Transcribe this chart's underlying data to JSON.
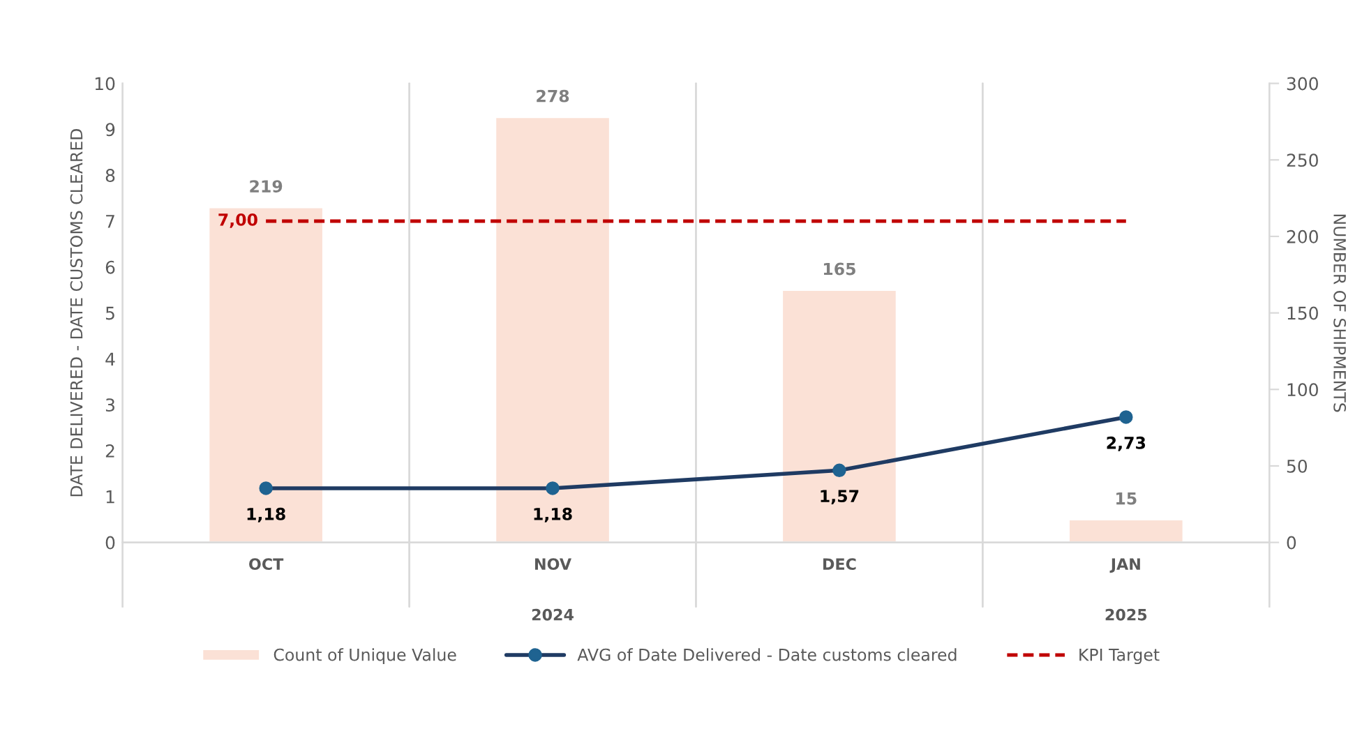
{
  "chart_data": {
    "type": "bar",
    "categories": [
      "OCT",
      "NOV",
      "DEC",
      "JAN"
    ],
    "ylabel": "DATE DELIVERED - DATE CUSTOMS CLEARED",
    "y2label": "NUMBER OF SHIPMENTS",
    "ylim": [
      0,
      10
    ],
    "yticks": [
      0,
      1,
      2,
      3,
      4,
      5,
      6,
      7,
      8,
      9,
      10
    ],
    "y2lim": [
      0,
      300
    ],
    "y2ticks": [
      0,
      50,
      100,
      150,
      200,
      250,
      300
    ],
    "series": [
      {
        "name": "Count of Unique Value",
        "axis": "y2",
        "color": "#fbe1d6",
        "values": [
          219,
          278,
          165,
          15
        ],
        "value_labels": [
          "219",
          "278",
          "165",
          "15"
        ]
      },
      {
        "name": "AVG of Date Delivered - Date customs cleared",
        "type": "line",
        "axis": "y",
        "color": "#1f3b63",
        "marker": "circle",
        "line_style": "solid",
        "values": [
          1.18,
          1.18,
          1.57,
          2.73
        ],
        "value_labels": [
          "1,18",
          "1,18",
          "1,57",
          "2,73"
        ]
      },
      {
        "name": "KPI Target",
        "type": "line",
        "axis": "y",
        "color": "#c00000",
        "marker": "none",
        "line_style": "dashed",
        "values": [
          7,
          7,
          7,
          7
        ],
        "value_labels": [
          "7,00",
          null,
          null,
          null
        ]
      }
    ],
    "annotations": [
      "2024",
      "2025"
    ],
    "grid": "x",
    "legend": "bottom"
  }
}
